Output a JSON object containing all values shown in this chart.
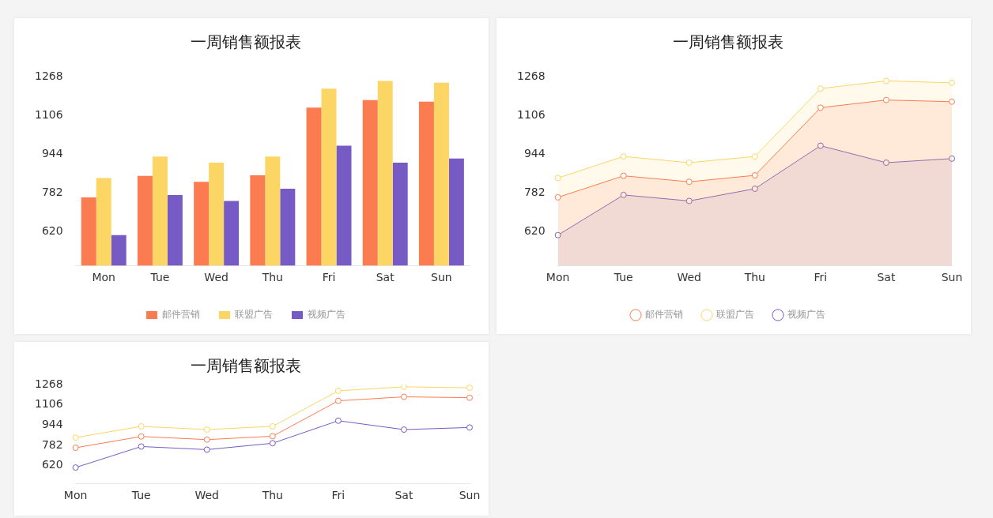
{
  "chart_data": [
    {
      "type": "bar",
      "title": "一周销售额报表",
      "categories": [
        "Mon",
        "Tue",
        "Wed",
        "Thu",
        "Fri",
        "Sat",
        "Sun"
      ],
      "ylim": [
        478,
        1268
      ],
      "yticks": [
        620,
        782,
        944,
        1106,
        1268
      ],
      "grid": false,
      "legend": "bottom",
      "series": [
        {
          "name": "邮件营销",
          "color": "#fb7c50",
          "values": [
            763,
            853,
            828,
            855,
            1138,
            1170,
            1163
          ]
        },
        {
          "name": "联盟广告",
          "color": "#fbd664",
          "values": [
            844,
            934,
            908,
            934,
            1218,
            1250,
            1242
          ]
        },
        {
          "name": "视频广告",
          "color": "#765bc4",
          "values": [
            605,
            773,
            748,
            799,
            979,
            908,
            925
          ]
        }
      ]
    },
    {
      "type": "area",
      "title": "一周销售额报表",
      "categories": [
        "Mon",
        "Tue",
        "Wed",
        "Thu",
        "Fri",
        "Sat",
        "Sun"
      ],
      "ylim": [
        478,
        1268
      ],
      "yticks": [
        620,
        782,
        944,
        1106,
        1268
      ],
      "grid": false,
      "legend": "bottom",
      "marker": "circle",
      "series": [
        {
          "name": "邮件营销",
          "color": "#fb7c50",
          "values": [
            763,
            853,
            828,
            855,
            1138,
            1170,
            1163
          ]
        },
        {
          "name": "联盟广告",
          "color": "#fbd664",
          "values": [
            844,
            934,
            908,
            934,
            1218,
            1250,
            1242
          ]
        },
        {
          "name": "视频广告",
          "color": "#765bc4",
          "values": [
            605,
            773,
            748,
            799,
            979,
            908,
            925
          ]
        }
      ]
    },
    {
      "type": "line",
      "title": "一周销售额报表",
      "categories": [
        "Mon",
        "Tue",
        "Wed",
        "Thu",
        "Fri",
        "Sat",
        "Sun"
      ],
      "ylim": [
        478,
        1268
      ],
      "yticks": [
        620,
        782,
        944,
        1106,
        1268
      ],
      "grid": false,
      "marker": "circle",
      "series": [
        {
          "color": "#fb7c50",
          "values": [
            763,
            853,
            828,
            855,
            1138,
            1170,
            1163
          ]
        },
        {
          "color": "#fbd664",
          "values": [
            844,
            934,
            908,
            934,
            1218,
            1250,
            1242
          ]
        },
        {
          "color": "#765bc4",
          "values": [
            605,
            773,
            748,
            799,
            979,
            908,
            925
          ]
        }
      ]
    }
  ]
}
